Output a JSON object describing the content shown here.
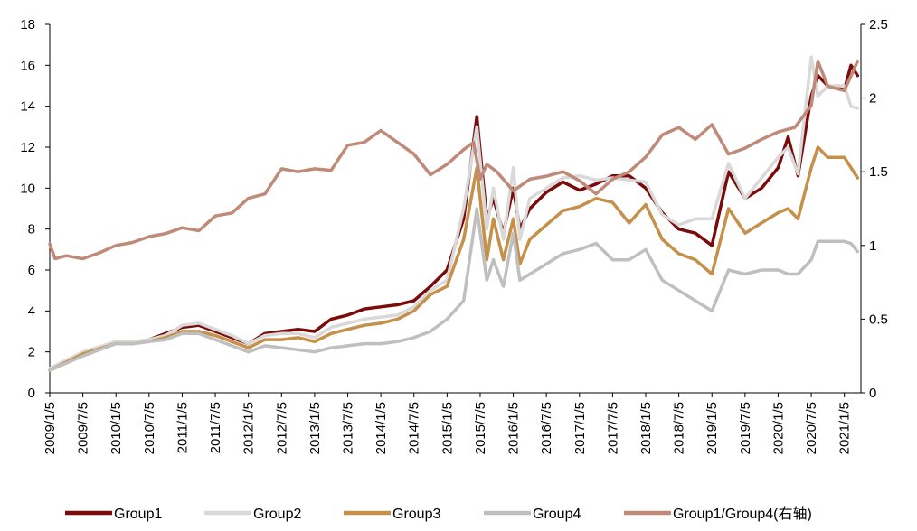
{
  "chart_data": {
    "type": "line",
    "title": "",
    "xlabel": "",
    "ylabel": "",
    "y2label": "",
    "ylim": [
      0,
      18
    ],
    "y2lim": [
      0,
      2.5
    ],
    "yticks": [
      0,
      2,
      4,
      6,
      8,
      10,
      12,
      14,
      16,
      18
    ],
    "y2ticks": [
      0,
      0.5,
      1,
      1.5,
      2,
      2.5
    ],
    "ytick_labels": [
      "0",
      "2",
      "4",
      "6",
      "8",
      "10",
      "12",
      "14",
      "16",
      "18"
    ],
    "y2tick_labels": [
      "0",
      "0.5",
      "1",
      "1.5",
      "2",
      "2.5"
    ],
    "x_range": [
      2009.0,
      2021.25
    ],
    "xtick_labels": [
      "2009/1/5",
      "2009/7/5",
      "2010/1/5",
      "2010/7/5",
      "2011/1/5",
      "2011/7/5",
      "2012/1/5",
      "2012/7/5",
      "2013/1/5",
      "2013/7/5",
      "2014/1/5",
      "2014/7/5",
      "2015/1/5",
      "2015/7/5",
      "2016/1/5",
      "2016/7/5",
      "2017/1/5",
      "2017/7/5",
      "2018/1/5",
      "2018/7/5",
      "2019/1/5",
      "2019/7/5",
      "2020/1/5",
      "2020/7/5",
      "2021/1/5"
    ],
    "xticks": [
      2009.0,
      2009.5,
      2010.0,
      2010.5,
      2011.0,
      2011.5,
      2012.0,
      2012.5,
      2013.0,
      2013.5,
      2014.0,
      2014.5,
      2015.0,
      2015.5,
      2016.0,
      2016.5,
      2017.0,
      2017.5,
      2018.0,
      2018.5,
      2019.0,
      2019.5,
      2020.0,
      2020.5,
      2021.0
    ],
    "legend_position": "bottom",
    "series": [
      {
        "name": "Group1",
        "axis": "left",
        "color": "#7B0A0A",
        "x": [
          2009.0,
          2009.5,
          2010.0,
          2010.25,
          2010.5,
          2010.75,
          2011.0,
          2011.25,
          2011.5,
          2011.75,
          2012.0,
          2012.25,
          2012.5,
          2012.75,
          2013.0,
          2013.25,
          2013.5,
          2013.75,
          2014.0,
          2014.25,
          2014.5,
          2014.75,
          2015.0,
          2015.25,
          2015.45,
          2015.6,
          2015.7,
          2015.85,
          2016.0,
          2016.1,
          2016.25,
          2016.5,
          2016.75,
          2017.0,
          2017.25,
          2017.5,
          2017.75,
          2018.0,
          2018.25,
          2018.5,
          2018.75,
          2019.0,
          2019.25,
          2019.5,
          2019.75,
          2020.0,
          2020.15,
          2020.3,
          2020.5,
          2020.6,
          2020.75,
          2021.0,
          2021.1,
          2021.2
        ],
        "values": [
          1.1,
          1.9,
          2.5,
          2.4,
          2.6,
          2.9,
          3.2,
          3.3,
          3.0,
          2.7,
          2.4,
          2.9,
          3.0,
          3.1,
          3.0,
          3.6,
          3.8,
          4.1,
          4.2,
          4.3,
          4.5,
          5.2,
          6.0,
          8.5,
          13.5,
          8.5,
          9.5,
          7.8,
          10.0,
          8.0,
          9.0,
          9.8,
          10.3,
          9.9,
          10.2,
          10.6,
          10.6,
          10.0,
          8.8,
          8.0,
          7.8,
          7.2,
          10.8,
          9.5,
          10.0,
          11.0,
          12.5,
          10.6,
          14.5,
          15.5,
          15.0,
          14.8,
          16.0,
          15.5
        ]
      },
      {
        "name": "Group2",
        "axis": "left",
        "color": "#D9D9D9",
        "x": [
          2009.0,
          2009.5,
          2010.0,
          2010.25,
          2010.5,
          2010.75,
          2011.0,
          2011.25,
          2011.5,
          2011.75,
          2012.0,
          2012.25,
          2012.5,
          2012.75,
          2013.0,
          2013.25,
          2013.5,
          2013.75,
          2014.0,
          2014.25,
          2014.5,
          2014.75,
          2015.0,
          2015.25,
          2015.45,
          2015.6,
          2015.7,
          2015.85,
          2016.0,
          2016.1,
          2016.25,
          2016.5,
          2016.75,
          2017.0,
          2017.25,
          2017.5,
          2017.75,
          2018.0,
          2018.25,
          2018.5,
          2018.75,
          2019.0,
          2019.25,
          2019.5,
          2019.75,
          2020.0,
          2020.15,
          2020.3,
          2020.5,
          2020.6,
          2020.75,
          2021.0,
          2021.1,
          2021.2
        ],
        "values": [
          1.2,
          2.0,
          2.5,
          2.5,
          2.6,
          2.8,
          3.3,
          3.4,
          3.1,
          2.8,
          2.4,
          2.8,
          2.9,
          2.9,
          2.7,
          3.2,
          3.4,
          3.6,
          3.7,
          3.8,
          4.2,
          5.0,
          5.5,
          9.0,
          13.0,
          8.0,
          10.0,
          7.5,
          11.0,
          7.5,
          9.5,
          10.0,
          10.5,
          10.6,
          10.4,
          10.5,
          10.4,
          10.3,
          8.7,
          8.2,
          8.5,
          8.5,
          11.2,
          9.5,
          10.5,
          11.5,
          12.0,
          10.7,
          16.4,
          14.5,
          15.0,
          15.0,
          14.0,
          13.9
        ]
      },
      {
        "name": "Group3",
        "axis": "left",
        "color": "#C4904A",
        "x": [
          2009.0,
          2009.5,
          2010.0,
          2010.25,
          2010.5,
          2010.75,
          2011.0,
          2011.25,
          2011.5,
          2011.75,
          2012.0,
          2012.25,
          2012.5,
          2012.75,
          2013.0,
          2013.25,
          2013.5,
          2013.75,
          2014.0,
          2014.25,
          2014.5,
          2014.75,
          2015.0,
          2015.25,
          2015.45,
          2015.6,
          2015.7,
          2015.85,
          2016.0,
          2016.1,
          2016.25,
          2016.5,
          2016.75,
          2017.0,
          2017.25,
          2017.5,
          2017.75,
          2018.0,
          2018.25,
          2018.5,
          2018.75,
          2019.0,
          2019.25,
          2019.5,
          2019.75,
          2020.0,
          2020.15,
          2020.3,
          2020.5,
          2020.6,
          2020.75,
          2021.0,
          2021.1,
          2021.2
        ],
        "values": [
          1.1,
          1.9,
          2.4,
          2.4,
          2.5,
          2.7,
          3.0,
          3.0,
          2.8,
          2.5,
          2.2,
          2.6,
          2.6,
          2.7,
          2.5,
          2.9,
          3.1,
          3.3,
          3.4,
          3.6,
          4.0,
          4.8,
          5.2,
          7.5,
          11.0,
          6.5,
          8.5,
          6.5,
          8.5,
          6.3,
          7.5,
          8.2,
          8.9,
          9.1,
          9.5,
          9.3,
          8.3,
          9.2,
          7.5,
          6.8,
          6.5,
          5.8,
          9.0,
          7.8,
          8.3,
          8.8,
          9.0,
          8.5,
          11.0,
          12.0,
          11.5,
          11.5,
          11.0,
          10.5
        ]
      },
      {
        "name": "Group4",
        "axis": "left",
        "color": "#BFBFBF",
        "x": [
          2009.0,
          2009.5,
          2010.0,
          2010.25,
          2010.5,
          2010.75,
          2011.0,
          2011.25,
          2011.5,
          2011.75,
          2012.0,
          2012.25,
          2012.5,
          2012.75,
          2013.0,
          2013.25,
          2013.5,
          2013.75,
          2014.0,
          2014.25,
          2014.5,
          2014.75,
          2015.0,
          2015.25,
          2015.45,
          2015.6,
          2015.7,
          2015.85,
          2016.0,
          2016.1,
          2016.25,
          2016.5,
          2016.75,
          2017.0,
          2017.25,
          2017.5,
          2017.75,
          2018.0,
          2018.25,
          2018.5,
          2018.75,
          2019.0,
          2019.25,
          2019.5,
          2019.75,
          2020.0,
          2020.15,
          2020.3,
          2020.5,
          2020.6,
          2020.75,
          2021.0,
          2021.1,
          2021.2
        ],
        "values": [
          1.1,
          1.8,
          2.4,
          2.4,
          2.5,
          2.6,
          2.9,
          2.9,
          2.6,
          2.3,
          2.0,
          2.3,
          2.2,
          2.1,
          2.0,
          2.2,
          2.3,
          2.4,
          2.4,
          2.5,
          2.7,
          3.0,
          3.6,
          4.5,
          9.0,
          5.5,
          6.5,
          5.2,
          7.8,
          5.5,
          5.8,
          6.3,
          6.8,
          7.0,
          7.3,
          6.5,
          6.5,
          7.0,
          5.5,
          5.0,
          4.5,
          4.0,
          6.0,
          5.8,
          6.0,
          6.0,
          5.8,
          5.8,
          6.5,
          7.4,
          7.4,
          7.4,
          7.3,
          6.9
        ]
      },
      {
        "name": "Group1/Group4(右轴)",
        "axis": "right",
        "color": "#C08A78",
        "x": [
          2009.0,
          2009.08,
          2009.25,
          2009.5,
          2009.75,
          2010.0,
          2010.25,
          2010.5,
          2010.75,
          2011.0,
          2011.25,
          2011.5,
          2011.75,
          2012.0,
          2012.25,
          2012.5,
          2012.75,
          2013.0,
          2013.25,
          2013.5,
          2013.75,
          2014.0,
          2014.25,
          2014.5,
          2014.75,
          2015.0,
          2015.25,
          2015.4,
          2015.5,
          2015.6,
          2015.75,
          2016.0,
          2016.25,
          2016.5,
          2016.75,
          2017.0,
          2017.25,
          2017.5,
          2017.75,
          2018.0,
          2018.25,
          2018.5,
          2018.75,
          2019.0,
          2019.25,
          2019.5,
          2019.75,
          2020.0,
          2020.25,
          2020.5,
          2020.6,
          2020.75,
          2021.0,
          2021.1,
          2021.2
        ],
        "values": [
          1.01,
          0.91,
          0.93,
          0.91,
          0.95,
          1.0,
          1.02,
          1.06,
          1.08,
          1.12,
          1.1,
          1.2,
          1.22,
          1.32,
          1.35,
          1.52,
          1.5,
          1.52,
          1.51,
          1.68,
          1.7,
          1.78,
          1.7,
          1.62,
          1.48,
          1.55,
          1.65,
          1.7,
          1.45,
          1.55,
          1.5,
          1.37,
          1.45,
          1.47,
          1.5,
          1.44,
          1.35,
          1.45,
          1.5,
          1.6,
          1.75,
          1.8,
          1.72,
          1.82,
          1.62,
          1.66,
          1.72,
          1.77,
          1.8,
          1.95,
          2.25,
          2.08,
          2.05,
          2.15,
          2.25
        ]
      }
    ]
  }
}
